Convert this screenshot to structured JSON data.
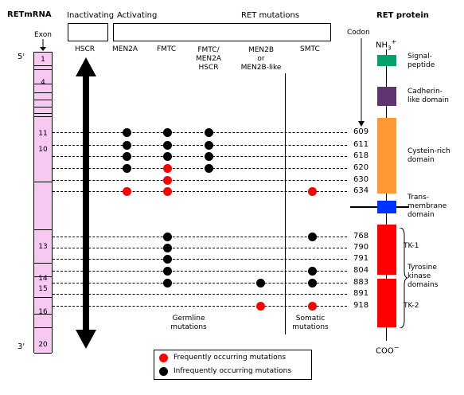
{
  "headers": {
    "retmrna": "RETmRNA",
    "exon": "Exon",
    "inactivating": "Inactivating",
    "activating": "Activating",
    "ret_mutations": "RET mutations",
    "ret_protein": "RET protein",
    "codon": "Codon"
  },
  "five_prime": "5'",
  "three_prime": "3'",
  "columns": {
    "hscr": "HSCR",
    "men2a": "MEN2A",
    "fmtc": "FMTC",
    "fmtc_men2a_hscr": [
      "FMTC/",
      "MEN2A",
      "HSCR"
    ],
    "men2b": [
      "MEN2B",
      "or",
      "MEN2B-like"
    ],
    "smtc": "SMTC"
  },
  "exons": [
    {
      "label": "1"
    },
    {
      "label": ""
    },
    {
      "label": "4"
    },
    {
      "label": ""
    },
    {
      "label": ""
    },
    {
      "label": ""
    },
    {
      "label": ""
    },
    {
      "label": "10"
    },
    {
      "label": "11"
    },
    {
      "label": ""
    },
    {
      "label": "13"
    },
    {
      "label": "14"
    },
    {
      "label": "15"
    },
    {
      "label": "16"
    },
    {
      "label": ""
    },
    {
      "label": "20"
    }
  ],
  "codons": [
    "609",
    "611",
    "618",
    "620",
    "630",
    "634",
    "768",
    "790",
    "791",
    "804",
    "883",
    "891",
    "918"
  ],
  "mutations": {
    "men2a": {
      "609": "infrequent",
      "611": "infrequent",
      "618": "infrequent",
      "620": "infrequent",
      "634": "frequent"
    },
    "fmtc": {
      "609": "infrequent",
      "611": "infrequent",
      "618": "infrequent",
      "620": "frequent",
      "630": "frequent",
      "634": "frequent",
      "768": "infrequent",
      "790": "infrequent",
      "791": "infrequent",
      "804": "infrequent",
      "883": "infrequent"
    },
    "fmtc_men2a_hscr": {
      "609": "infrequent",
      "611": "infrequent",
      "618": "infrequent",
      "620": "infrequent"
    },
    "men2b": {
      "883": "infrequent",
      "918": "frequent"
    },
    "smtc": {
      "634": "frequent",
      "768": "infrequent",
      "804": "infrequent",
      "883": "infrequent",
      "918": "frequent"
    }
  },
  "germline_mutations": [
    "Germline",
    "mutations"
  ],
  "somatic_mutations": [
    "Somatic",
    "mutations"
  ],
  "protein": {
    "nh3": "NH",
    "nh3_sub": "3",
    "nh3_sup": "+",
    "coo": "COO",
    "coo_sup": "−",
    "domains": [
      {
        "label": [
          "Signal-",
          "peptide"
        ],
        "color": "#00a36c"
      },
      {
        "label": [
          "Cadherin-",
          "like domain"
        ],
        "color": "#5e3570"
      },
      {
        "label": [
          "Cystein-rich",
          "domain"
        ],
        "color": "#ff9933"
      },
      {
        "label": [
          "Trans-",
          "membrane",
          "domain"
        ],
        "color": "#0033ff"
      },
      {
        "label": [
          "TK-1"
        ],
        "color": "#ff0000"
      },
      {
        "label": [
          "Tyrosine",
          "kinase",
          "domains"
        ],
        "color": ""
      },
      {
        "label": [
          "TK-2"
        ],
        "color": "#ff0000"
      }
    ]
  },
  "legend": {
    "frequent": "Frequently occurring mutations",
    "infrequent": "Infrequently occurring mutations",
    "frequent_color": "#ff0000",
    "infrequent_color": "#000000"
  }
}
